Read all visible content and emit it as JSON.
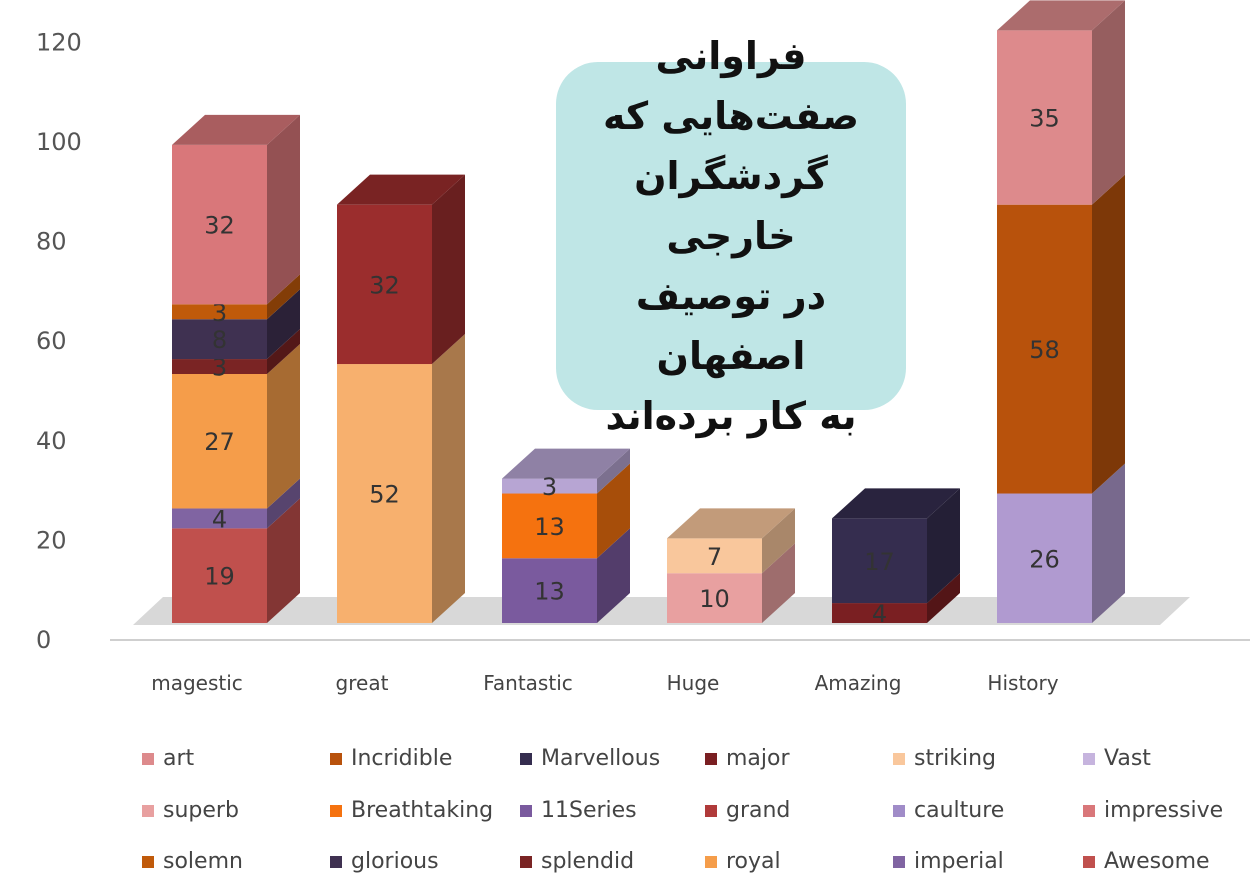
{
  "chart_data": {
    "type": "bar",
    "stacked": true,
    "style": "3d",
    "title": "فراوانی صفت‌هایی که گردشگران خارجی در توصیف اصفهان به کار برده‌اند",
    "title_lines": [
      "فراوانی",
      "صفت‌هایی که",
      "گردشگران خارجی",
      "در توصیف اصفهان",
      "به کار برده‌اند"
    ],
    "categories": [
      "magestic",
      "great",
      "Fantastic",
      "Huge",
      "Amazing",
      "History"
    ],
    "ylim": [
      0,
      120
    ],
    "yticks": [
      "0",
      "20",
      "40",
      "60",
      "80",
      "100",
      "120"
    ],
    "grid": false,
    "legend_position": "bottom",
    "stacks": [
      [
        {
          "series": "Awesome",
          "value": 19,
          "color": "#c0504d"
        },
        {
          "series": "imperial",
          "value": 4,
          "color": "#8064a2"
        },
        {
          "series": "royal",
          "value": 27,
          "color": "#f59d4a"
        },
        {
          "series": "splendid",
          "value": 3,
          "color": "#7a2424"
        },
        {
          "series": "glorious",
          "value": 8,
          "color": "#3f3151"
        },
        {
          "series": "solemn",
          "value": 3,
          "color": "#c05a0a"
        },
        {
          "series": "impressive",
          "value": 32,
          "color": "#d9777a"
        }
      ],
      [
        {
          "series": "royal",
          "value": 52,
          "color": "#f7b06e"
        },
        {
          "series": "grand",
          "value": 32,
          "color": "#9b2d2d"
        }
      ],
      [
        {
          "series": "11Series",
          "value": 13,
          "color": "#7a5a9e"
        },
        {
          "series": "Breathtaking",
          "value": 13,
          "color": "#f5720f"
        },
        {
          "series": "caulture",
          "value": 3,
          "color": "#b7a5d3"
        }
      ],
      [
        {
          "series": "superb",
          "value": 10,
          "color": "#e8a0a0"
        },
        {
          "series": "striking",
          "value": 7,
          "color": "#f9c79c"
        }
      ],
      [
        {
          "series": "major",
          "value": 4,
          "color": "#7a1f22"
        },
        {
          "series": "Marvellous",
          "value": 17,
          "color": "#352d4f"
        }
      ],
      [
        {
          "series": "Vast",
          "value": 26,
          "color": "#b09ad0"
        },
        {
          "series": "Incridible",
          "value": 58,
          "color": "#b8520c"
        },
        {
          "series": "art",
          "value": 35,
          "color": "#dd8a8c"
        }
      ]
    ],
    "legend": [
      {
        "label": "art",
        "color": "#dd8a8c"
      },
      {
        "label": "Incridible",
        "color": "#b8520c"
      },
      {
        "label": "Marvellous",
        "color": "#352d4f"
      },
      {
        "label": "major",
        "color": "#7a1f22"
      },
      {
        "label": "striking",
        "color": "#f9c79c"
      },
      {
        "label": "Vast",
        "color": "#c6b4de"
      },
      {
        "label": "superb",
        "color": "#e8a0a0"
      },
      {
        "label": "Breathtaking",
        "color": "#f5720f"
      },
      {
        "label": "11Series",
        "color": "#7a5a9e"
      },
      {
        "label": "grand",
        "color": "#b03a3a"
      },
      {
        "label": "caulture",
        "color": "#a08cc8"
      },
      {
        "label": "impressive",
        "color": "#d9777a"
      },
      {
        "label": "solemn",
        "color": "#c05a0a"
      },
      {
        "label": "glorious",
        "color": "#3f3151"
      },
      {
        "label": "splendid",
        "color": "#7a2424"
      },
      {
        "label": "royal",
        "color": "#f59d4a"
      },
      {
        "label": "imperial",
        "color": "#8064a2"
      },
      {
        "label": "Awesome",
        "color": "#c0504d"
      }
    ]
  }
}
